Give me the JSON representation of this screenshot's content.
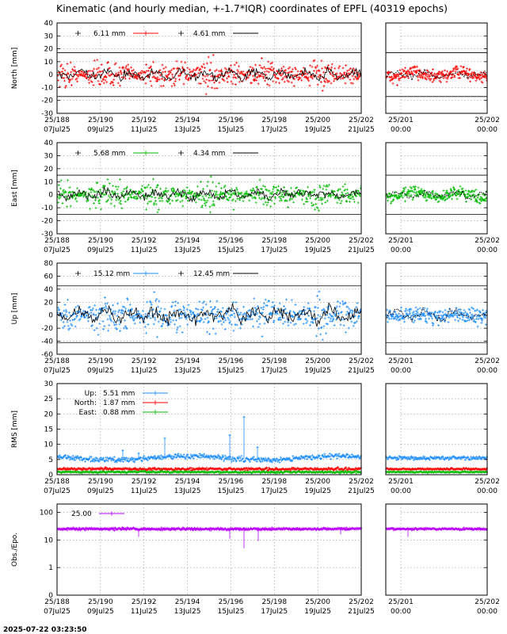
{
  "title": "Kinematic (and hourly median, +-1.7*IQR) coordinates of EPFL (40319 epochs)",
  "footer_timestamp": "2025-07-22 03:23:50",
  "main_time_axis": {
    "ticks": [
      {
        "top": "25/188",
        "bottom": "07Jul25"
      },
      {
        "top": "25/190",
        "bottom": "09Jul25"
      },
      {
        "top": "25/192",
        "bottom": "11Jul25"
      },
      {
        "top": "25/194",
        "bottom": "13Jul25"
      },
      {
        "top": "25/196",
        "bottom": "15Jul25"
      },
      {
        "top": "25/198",
        "bottom": "17Jul25"
      },
      {
        "top": "25/200",
        "bottom": "19Jul25"
      },
      {
        "top": "25/202",
        "bottom": "21Jul25"
      }
    ]
  },
  "zoom_time_axis": {
    "ticks": [
      {
        "top": "25/201",
        "bottom": "00:00"
      },
      {
        "top": "25/202",
        "bottom": "00:00"
      }
    ]
  },
  "colors": {
    "north": "#ff0000",
    "east": "#00bb00",
    "up": "#1e8fff",
    "obs": "#bb00ff",
    "median": "#000000"
  },
  "chart_data": [
    {
      "type": "scatter",
      "id": "north",
      "ylabel": "North [mm]",
      "ylim": [
        -30,
        40
      ],
      "yticks": [
        "40",
        "30",
        "20",
        "10",
        "0",
        "-10",
        "-20",
        "-30"
      ],
      "iqr_bounds": [
        -17,
        17
      ],
      "series": [
        {
          "name": "6.11 mm",
          "color": "#ff0000",
          "spread": 6.11
        },
        {
          "name": "4.61 mm",
          "color": "#000000",
          "spread": 4.61
        }
      ]
    },
    {
      "type": "scatter",
      "id": "east",
      "ylabel": "East [mm]",
      "ylim": [
        -30,
        40
      ],
      "yticks": [
        "40",
        "30",
        "20",
        "10",
        "0",
        "-10",
        "-20",
        "-30"
      ],
      "iqr_bounds": [
        -15,
        15
      ],
      "series": [
        {
          "name": "5.68 mm",
          "color": "#00bb00",
          "spread": 5.68
        },
        {
          "name": "4.34 mm",
          "color": "#000000",
          "spread": 4.34
        }
      ]
    },
    {
      "type": "scatter",
      "id": "up",
      "ylabel": "Up [mm]",
      "ylim": [
        -60,
        80
      ],
      "yticks": [
        "80",
        "60",
        "40",
        "20",
        "0",
        "-20",
        "-40",
        "-60"
      ],
      "iqr_bounds": [
        -42,
        45
      ],
      "series": [
        {
          "name": "15.12 mm",
          "color": "#1e8fff",
          "spread": 15.12
        },
        {
          "name": "12.45 mm",
          "color": "#000000",
          "spread": 12.45
        }
      ]
    },
    {
      "type": "line",
      "id": "rms",
      "ylabel": "RMS [mm]",
      "ylim": [
        0,
        30
      ],
      "yticks": [
        "30",
        "25",
        "20",
        "15",
        "10",
        "5",
        "0"
      ],
      "series": [
        {
          "name": "Up:",
          "value_label": "5.51 mm",
          "color": "#1e8fff",
          "value": 5.51
        },
        {
          "name": "North:",
          "value_label": "1.87 mm",
          "color": "#ff0000",
          "value": 1.87
        },
        {
          "name": "East:",
          "value_label": "0.88 mm",
          "color": "#00bb00",
          "value": 0.88
        }
      ]
    },
    {
      "type": "scatter",
      "id": "obs",
      "ylabel": "Obs./Epo.",
      "yscale": "log",
      "ylim": [
        0.1,
        200
      ],
      "yticks": [
        {
          "label": "100",
          "value": 100
        },
        {
          "label": "10",
          "value": 10
        },
        {
          "label": "1",
          "value": 1
        },
        {
          "label": "0",
          "value": 0.1
        }
      ],
      "series": [
        {
          "name": "25.00",
          "color": "#bb00ff",
          "value": 25.0
        }
      ]
    }
  ]
}
